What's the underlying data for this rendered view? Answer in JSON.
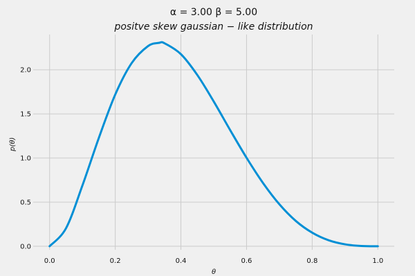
{
  "chart_data": {
    "type": "line",
    "title_line1": "α = 3.00    β = 5.00",
    "title_line2": "positve  skew  gaussian − like   distribution",
    "xlabel": "θ",
    "ylabel": "p(θ)",
    "xlim": [
      -0.05,
      1.05
    ],
    "ylim": [
      -0.04,
      2.4
    ],
    "xticks": [
      0.0,
      0.2,
      0.4,
      0.6,
      0.8,
      1.0
    ],
    "xtick_labels": [
      "0.0",
      "0.2",
      "0.4",
      "0.6",
      "0.8",
      "1.0"
    ],
    "yticks": [
      0.0,
      0.5,
      1.0,
      1.5,
      2.0
    ],
    "ytick_labels": [
      "0.0",
      "0.5",
      "1.0",
      "1.5",
      "2.0"
    ],
    "grid": true,
    "series": [
      {
        "color": "#008fd5",
        "x": [
          0.0,
          0.05,
          0.1,
          0.15,
          0.2,
          0.25,
          0.3,
          0.333,
          0.35,
          0.4,
          0.45,
          0.5,
          0.55,
          0.6,
          0.65,
          0.7,
          0.75,
          0.8,
          0.85,
          0.9,
          0.95,
          1.0
        ],
        "y": [
          0.0,
          0.204,
          0.689,
          1.228,
          1.72,
          2.076,
          2.269,
          2.305,
          2.301,
          2.177,
          1.941,
          1.641,
          1.317,
          1.003,
          0.718,
          0.476,
          0.287,
          0.154,
          0.068,
          0.022,
          0.003,
          0.0
        ]
      }
    ]
  }
}
